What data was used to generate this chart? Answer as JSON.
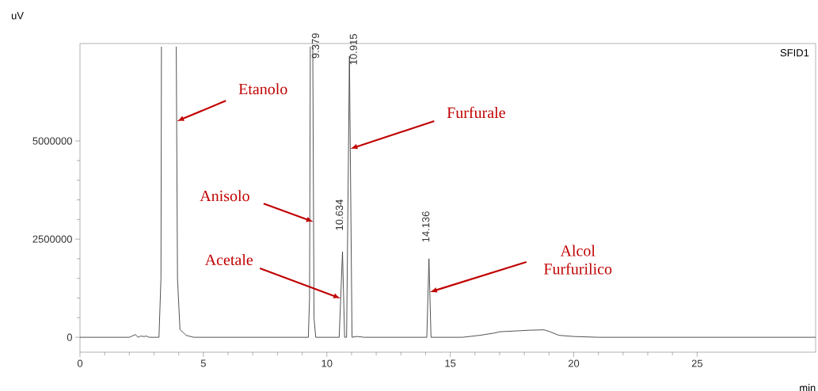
{
  "chart_data": {
    "type": "line",
    "xlabel": "min",
    "ylabel": "uV",
    "x": [
      0,
      2.0,
      2.25,
      2.35,
      2.45,
      2.6,
      2.7,
      2.8,
      3.2,
      3.28,
      3.3,
      3.6,
      3.9,
      3.95,
      4.05,
      4.3,
      4.6,
      9.25,
      9.3,
      9.33,
      9.38,
      9.43,
      9.48,
      9.55,
      10.5,
      10.634,
      10.72,
      10.8,
      10.915,
      11.02,
      11.2,
      11.4,
      11.5,
      14.05,
      14.136,
      14.22,
      14.35,
      15.5,
      16.2,
      16.8,
      17.0,
      17.6,
      18.2,
      18.8,
      19.0,
      19.4,
      20.0,
      21.0,
      29.8
    ],
    "series": [
      {
        "color": "#404040",
        "values": [
          0,
          0,
          70000,
          0,
          30000,
          20000,
          30000,
          0,
          0,
          1500000,
          7400000,
          null,
          7400000,
          1500000,
          200000,
          50000,
          0,
          0,
          1000000,
          7400000,
          null,
          7400000,
          500000,
          0,
          0,
          2180000,
          0,
          0,
          7160000,
          0,
          20000,
          10000,
          0,
          0,
          2000000,
          0,
          0,
          0,
          50000,
          110000,
          140000,
          160000,
          180000,
          190000,
          150000,
          50000,
          20000,
          0,
          0
        ]
      }
    ],
    "xlim": [
      0,
      29.8
    ],
    "ylim": [
      -380000,
      7480000
    ],
    "xticks": [
      0,
      5,
      10,
      15,
      20,
      25
    ],
    "yticks": [
      0,
      2500000,
      5000000
    ],
    "marker": "none",
    "line_style": "solid",
    "annotations": [
      "SFID1",
      {
        "text": "9.379",
        "x": 9.379,
        "y": 7400000
      },
      {
        "text": "10.915",
        "x": 10.915,
        "y": 7160000
      },
      {
        "text": "10.634",
        "x": 10.634,
        "y": 2180000
      },
      {
        "text": "14.136",
        "x": 14.136,
        "y": 2000000
      },
      {
        "text": "Etanolo",
        "x": 3.92,
        "y": 5500000
      },
      {
        "text": "Anisolo",
        "x": 9.46,
        "y": 2940000
      },
      {
        "text": "Acetale",
        "x": 10.56,
        "y": 990000
      },
      {
        "text": "Furfurale",
        "x": 10.95,
        "y": 4800000
      },
      {
        "text": "Alcol Furfurilico",
        "x": 14.17,
        "y": 1150000
      }
    ]
  }
}
